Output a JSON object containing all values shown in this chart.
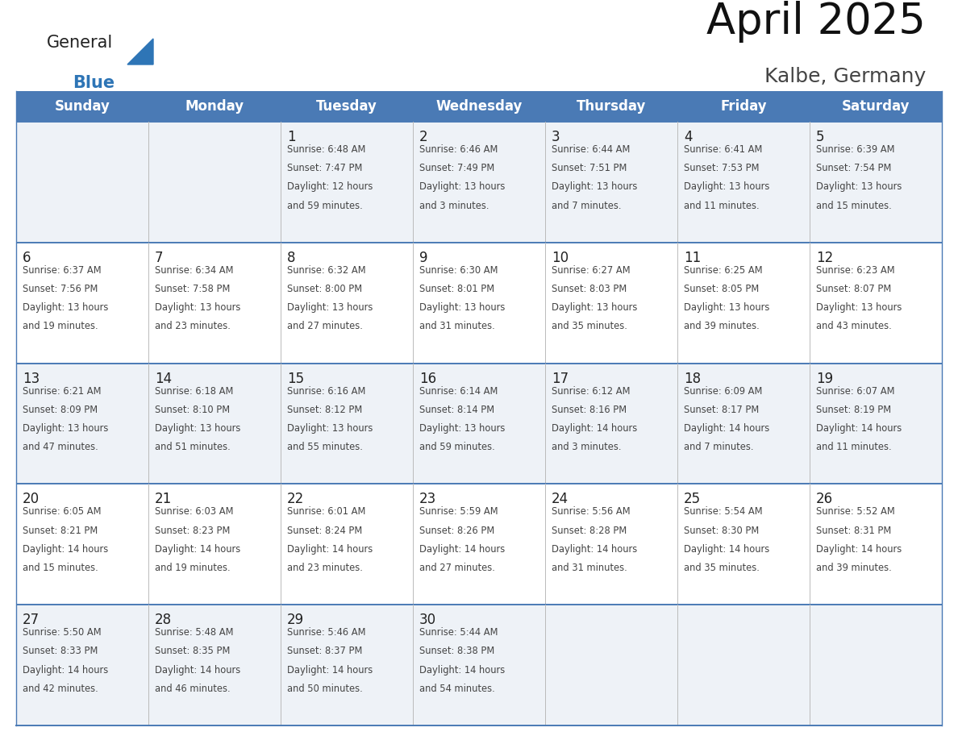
{
  "title": "April 2025",
  "subtitle": "Kalbe, Germany",
  "days_of_week": [
    "Sunday",
    "Monday",
    "Tuesday",
    "Wednesday",
    "Thursday",
    "Friday",
    "Saturday"
  ],
  "header_bg": "#4a7ab5",
  "header_text": "#ffffff",
  "row_bg_odd": "#eef2f7",
  "row_bg_even": "#ffffff",
  "day_num_color": "#222222",
  "text_color": "#444444",
  "line_color": "#4a7ab5",
  "logo_general_color": "#222222",
  "logo_blue_color": "#2e75b6",
  "calendar_data": [
    [
      {
        "day": "",
        "sunrise": "",
        "sunset": "",
        "daylight_h": "",
        "daylight_m": ""
      },
      {
        "day": "",
        "sunrise": "",
        "sunset": "",
        "daylight_h": "",
        "daylight_m": ""
      },
      {
        "day": "1",
        "sunrise": "6:48 AM",
        "sunset": "7:47 PM",
        "daylight_h": "12 hours",
        "daylight_m": "and 59 minutes."
      },
      {
        "day": "2",
        "sunrise": "6:46 AM",
        "sunset": "7:49 PM",
        "daylight_h": "13 hours",
        "daylight_m": "and 3 minutes."
      },
      {
        "day": "3",
        "sunrise": "6:44 AM",
        "sunset": "7:51 PM",
        "daylight_h": "13 hours",
        "daylight_m": "and 7 minutes."
      },
      {
        "day": "4",
        "sunrise": "6:41 AM",
        "sunset": "7:53 PM",
        "daylight_h": "13 hours",
        "daylight_m": "and 11 minutes."
      },
      {
        "day": "5",
        "sunrise": "6:39 AM",
        "sunset": "7:54 PM",
        "daylight_h": "13 hours",
        "daylight_m": "and 15 minutes."
      }
    ],
    [
      {
        "day": "6",
        "sunrise": "6:37 AM",
        "sunset": "7:56 PM",
        "daylight_h": "13 hours",
        "daylight_m": "and 19 minutes."
      },
      {
        "day": "7",
        "sunrise": "6:34 AM",
        "sunset": "7:58 PM",
        "daylight_h": "13 hours",
        "daylight_m": "and 23 minutes."
      },
      {
        "day": "8",
        "sunrise": "6:32 AM",
        "sunset": "8:00 PM",
        "daylight_h": "13 hours",
        "daylight_m": "and 27 minutes."
      },
      {
        "day": "9",
        "sunrise": "6:30 AM",
        "sunset": "8:01 PM",
        "daylight_h": "13 hours",
        "daylight_m": "and 31 minutes."
      },
      {
        "day": "10",
        "sunrise": "6:27 AM",
        "sunset": "8:03 PM",
        "daylight_h": "13 hours",
        "daylight_m": "and 35 minutes."
      },
      {
        "day": "11",
        "sunrise": "6:25 AM",
        "sunset": "8:05 PM",
        "daylight_h": "13 hours",
        "daylight_m": "and 39 minutes."
      },
      {
        "day": "12",
        "sunrise": "6:23 AM",
        "sunset": "8:07 PM",
        "daylight_h": "13 hours",
        "daylight_m": "and 43 minutes."
      }
    ],
    [
      {
        "day": "13",
        "sunrise": "6:21 AM",
        "sunset": "8:09 PM",
        "daylight_h": "13 hours",
        "daylight_m": "and 47 minutes."
      },
      {
        "day": "14",
        "sunrise": "6:18 AM",
        "sunset": "8:10 PM",
        "daylight_h": "13 hours",
        "daylight_m": "and 51 minutes."
      },
      {
        "day": "15",
        "sunrise": "6:16 AM",
        "sunset": "8:12 PM",
        "daylight_h": "13 hours",
        "daylight_m": "and 55 minutes."
      },
      {
        "day": "16",
        "sunrise": "6:14 AM",
        "sunset": "8:14 PM",
        "daylight_h": "13 hours",
        "daylight_m": "and 59 minutes."
      },
      {
        "day": "17",
        "sunrise": "6:12 AM",
        "sunset": "8:16 PM",
        "daylight_h": "14 hours",
        "daylight_m": "and 3 minutes."
      },
      {
        "day": "18",
        "sunrise": "6:09 AM",
        "sunset": "8:17 PM",
        "daylight_h": "14 hours",
        "daylight_m": "and 7 minutes."
      },
      {
        "day": "19",
        "sunrise": "6:07 AM",
        "sunset": "8:19 PM",
        "daylight_h": "14 hours",
        "daylight_m": "and 11 minutes."
      }
    ],
    [
      {
        "day": "20",
        "sunrise": "6:05 AM",
        "sunset": "8:21 PM",
        "daylight_h": "14 hours",
        "daylight_m": "and 15 minutes."
      },
      {
        "day": "21",
        "sunrise": "6:03 AM",
        "sunset": "8:23 PM",
        "daylight_h": "14 hours",
        "daylight_m": "and 19 minutes."
      },
      {
        "day": "22",
        "sunrise": "6:01 AM",
        "sunset": "8:24 PM",
        "daylight_h": "14 hours",
        "daylight_m": "and 23 minutes."
      },
      {
        "day": "23",
        "sunrise": "5:59 AM",
        "sunset": "8:26 PM",
        "daylight_h": "14 hours",
        "daylight_m": "and 27 minutes."
      },
      {
        "day": "24",
        "sunrise": "5:56 AM",
        "sunset": "8:28 PM",
        "daylight_h": "14 hours",
        "daylight_m": "and 31 minutes."
      },
      {
        "day": "25",
        "sunrise": "5:54 AM",
        "sunset": "8:30 PM",
        "daylight_h": "14 hours",
        "daylight_m": "and 35 minutes."
      },
      {
        "day": "26",
        "sunrise": "5:52 AM",
        "sunset": "8:31 PM",
        "daylight_h": "14 hours",
        "daylight_m": "and 39 minutes."
      }
    ],
    [
      {
        "day": "27",
        "sunrise": "5:50 AM",
        "sunset": "8:33 PM",
        "daylight_h": "14 hours",
        "daylight_m": "and 42 minutes."
      },
      {
        "day": "28",
        "sunrise": "5:48 AM",
        "sunset": "8:35 PM",
        "daylight_h": "14 hours",
        "daylight_m": "and 46 minutes."
      },
      {
        "day": "29",
        "sunrise": "5:46 AM",
        "sunset": "8:37 PM",
        "daylight_h": "14 hours",
        "daylight_m": "and 50 minutes."
      },
      {
        "day": "30",
        "sunrise": "5:44 AM",
        "sunset": "8:38 PM",
        "daylight_h": "14 hours",
        "daylight_m": "and 54 minutes."
      },
      {
        "day": "",
        "sunrise": "",
        "sunset": "",
        "daylight_h": "",
        "daylight_m": ""
      },
      {
        "day": "",
        "sunrise": "",
        "sunset": "",
        "daylight_h": "",
        "daylight_m": ""
      },
      {
        "day": "",
        "sunrise": "",
        "sunset": "",
        "daylight_h": "",
        "daylight_m": ""
      }
    ]
  ]
}
